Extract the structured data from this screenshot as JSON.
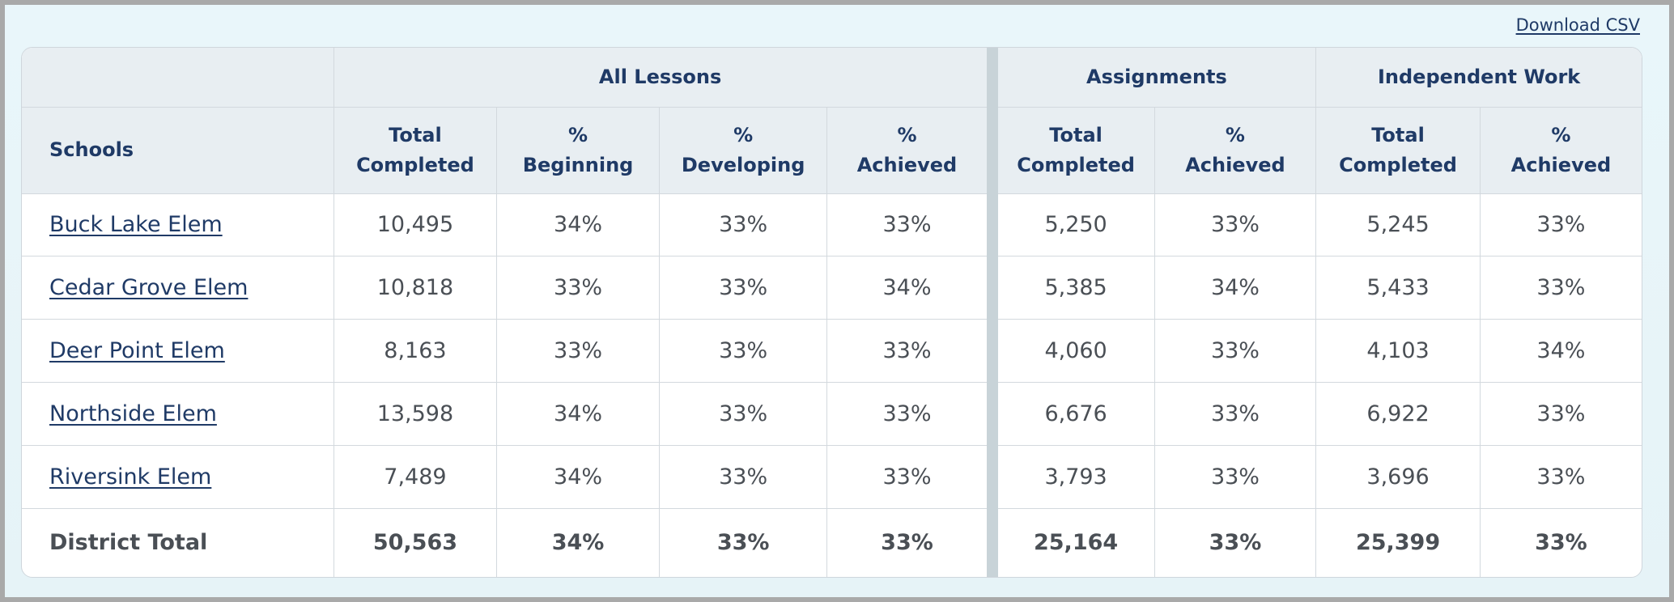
{
  "download_label": "Download CSV",
  "groups": [
    "All Lessons",
    "Assignments",
    "Independent Work"
  ],
  "columns": {
    "schools": "Schools",
    "all_lessons": [
      {
        "l1": "Total",
        "l2": "Completed"
      },
      {
        "l1": "%",
        "l2": "Beginning"
      },
      {
        "l1": "%",
        "l2": "Developing"
      },
      {
        "l1": "%",
        "l2": "Achieved"
      }
    ],
    "assignments": [
      {
        "l1": "Total",
        "l2": "Completed"
      },
      {
        "l1": "%",
        "l2": "Achieved"
      }
    ],
    "independent": [
      {
        "l1": "Total",
        "l2": "Completed"
      },
      {
        "l1": "%",
        "l2": "Achieved"
      }
    ]
  },
  "rows": [
    {
      "school": "Buck Lake Elem",
      "cells": [
        "10,495",
        "34%",
        "33%",
        "33%",
        "5,250",
        "33%",
        "5,245",
        "33%"
      ]
    },
    {
      "school": "Cedar Grove Elem",
      "cells": [
        "10,818",
        "33%",
        "33%",
        "34%",
        "5,385",
        "34%",
        "5,433",
        "33%"
      ]
    },
    {
      "school": "Deer Point Elem",
      "cells": [
        "8,163",
        "33%",
        "33%",
        "33%",
        "4,060",
        "33%",
        "4,103",
        "34%"
      ]
    },
    {
      "school": "Northside Elem",
      "cells": [
        "13,598",
        "34%",
        "33%",
        "33%",
        "6,676",
        "33%",
        "6,922",
        "33%"
      ]
    },
    {
      "school": "Riversink Elem",
      "cells": [
        "7,489",
        "34%",
        "33%",
        "33%",
        "3,793",
        "33%",
        "3,696",
        "33%"
      ]
    }
  ],
  "total": {
    "label": "District Total",
    "cells": [
      "50,563",
      "34%",
      "33%",
      "33%",
      "25,164",
      "33%",
      "25,399",
      "33%"
    ]
  }
}
